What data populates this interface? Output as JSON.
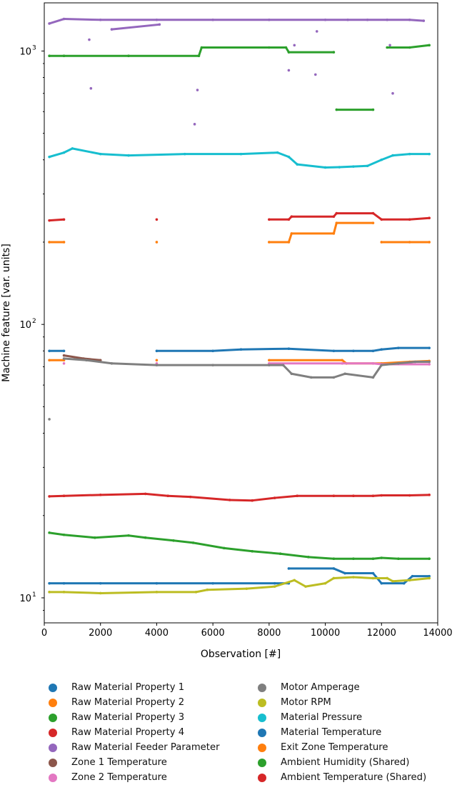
{
  "chart_data": {
    "type": "scatter",
    "title": "",
    "xlabel": "Observation [#]",
    "ylabel": "Machine feature [var. units]",
    "xlim": [
      0,
      14000
    ],
    "ylim": [
      8.1,
      1500
    ],
    "yscale": "log",
    "xticks": [
      0,
      2000,
      4000,
      6000,
      8000,
      10000,
      12000,
      14000
    ],
    "yticks": [
      {
        "value": 10,
        "label": "10"
      },
      {
        "value": 100,
        "label": "10"
      },
      {
        "value": 1000,
        "label": "10"
      }
    ],
    "ytick_exponents": [
      "1",
      "2",
      "3"
    ],
    "legend_position": "below",
    "series": [
      {
        "name": "Raw Material Property 1",
        "color": "#1f77b4",
        "points": [
          [
            180,
            11.3
          ],
          [
            700,
            11.3
          ],
          [
            2000,
            11.3
          ],
          [
            4000,
            11.3
          ],
          [
            6000,
            11.3
          ],
          [
            8200,
            11.3
          ],
          [
            8700,
            11.3
          ],
          [
            8700,
            12.8
          ],
          [
            10300,
            12.8
          ],
          [
            10700,
            12.3
          ],
          [
            11700,
            12.3
          ],
          [
            12000,
            11.3
          ],
          [
            12800,
            11.3
          ],
          [
            13100,
            12
          ],
          [
            13700,
            12
          ]
        ]
      },
      {
        "name": "Raw Material Property 2",
        "color": "#ff7f0e",
        "points": [
          [
            180,
            74
          ],
          [
            700,
            74
          ],
          [
            4000,
            74
          ],
          [
            8000,
            74
          ],
          [
            10600,
            74
          ],
          [
            10750,
            72
          ],
          [
            11700,
            72
          ],
          [
            12000,
            72
          ],
          [
            13000,
            73
          ],
          [
            13700,
            73.5
          ]
        ]
      },
      {
        "name": "Raw Material Property 3",
        "color": "#2ca02c",
        "points": [
          [
            180,
            17.3
          ],
          [
            700,
            17
          ],
          [
            1800,
            16.6
          ],
          [
            3000,
            16.9
          ],
          [
            3600,
            16.6
          ],
          [
            4600,
            16.2
          ],
          [
            5300,
            15.9
          ],
          [
            6400,
            15.2
          ],
          [
            7400,
            14.8
          ],
          [
            8400,
            14.5
          ],
          [
            9400,
            14.1
          ],
          [
            10300,
            13.9
          ],
          [
            11000,
            13.9
          ],
          [
            11700,
            13.9
          ],
          [
            12000,
            14
          ],
          [
            12600,
            13.9
          ],
          [
            13700,
            13.9
          ]
        ]
      },
      {
        "name": "Raw Material Property 4",
        "color": "#d62728",
        "points": [
          [
            180,
            23.5
          ],
          [
            700,
            23.6
          ],
          [
            2000,
            23.8
          ],
          [
            3600,
            24
          ],
          [
            4400,
            23.6
          ],
          [
            5200,
            23.4
          ],
          [
            6600,
            22.8
          ],
          [
            7400,
            22.7
          ],
          [
            8200,
            23.2
          ],
          [
            9000,
            23.6
          ],
          [
            10300,
            23.6
          ],
          [
            11000,
            23.6
          ],
          [
            11700,
            23.6
          ],
          [
            12000,
            23.7
          ],
          [
            13000,
            23.7
          ],
          [
            13700,
            23.8
          ]
        ]
      },
      {
        "name": "Raw Material Feeder Parameter",
        "color": "#9467bd",
        "points": [
          [
            180,
            1260
          ],
          [
            700,
            1310
          ],
          [
            2000,
            1300
          ],
          [
            4000,
            1300
          ],
          [
            6000,
            1300
          ],
          [
            8000,
            1300
          ],
          [
            10000,
            1300
          ],
          [
            10800,
            1300
          ],
          [
            11500,
            1300
          ],
          [
            12200,
            1300
          ],
          [
            13000,
            1300
          ],
          [
            13500,
            1290
          ],
          [
            1600,
            1100
          ],
          [
            1660,
            730
          ],
          [
            2400,
            1200
          ],
          [
            4100,
            1250
          ],
          [
            5350,
            540
          ],
          [
            5450,
            720
          ],
          [
            8700,
            850
          ],
          [
            8900,
            1050
          ],
          [
            9650,
            820
          ],
          [
            9700,
            1180
          ],
          [
            12400,
            700
          ],
          [
            12300,
            1050
          ]
        ]
      },
      {
        "name": "Zone 1 Temperature",
        "color": "#8c564b",
        "points": [
          [
            700,
            77
          ],
          [
            1400,
            75
          ],
          [
            2000,
            74
          ]
        ]
      },
      {
        "name": "Zone 2 Temperature",
        "color": "#e377c2",
        "points": [
          [
            700,
            72
          ],
          [
            4000,
            72
          ],
          [
            8000,
            72
          ],
          [
            10600,
            72
          ],
          [
            11700,
            72
          ],
          [
            12000,
            71.5
          ],
          [
            13700,
            71.5
          ]
        ]
      },
      {
        "name": "Motor Amperage",
        "color": "#7f7f7f",
        "points": [
          [
            180,
            45
          ],
          [
            700,
            75
          ],
          [
            1500,
            74
          ],
          [
            2400,
            72
          ],
          [
            4000,
            71
          ],
          [
            6000,
            71
          ],
          [
            8000,
            71
          ],
          [
            8500,
            71
          ],
          [
            8800,
            66
          ],
          [
            9500,
            64
          ],
          [
            10300,
            64
          ],
          [
            10700,
            66
          ],
          [
            11700,
            64
          ],
          [
            12000,
            71
          ],
          [
            12600,
            72
          ],
          [
            13200,
            73
          ],
          [
            13700,
            73
          ]
        ]
      },
      {
        "name": "Motor RPM",
        "color": "#bcbd22",
        "points": [
          [
            180,
            10.5
          ],
          [
            700,
            10.5
          ],
          [
            2000,
            10.4
          ],
          [
            4000,
            10.5
          ],
          [
            5400,
            10.5
          ],
          [
            5800,
            10.7
          ],
          [
            7200,
            10.8
          ],
          [
            8200,
            11
          ],
          [
            8900,
            11.6
          ],
          [
            9300,
            11
          ],
          [
            10000,
            11.3
          ],
          [
            10300,
            11.8
          ],
          [
            11000,
            11.9
          ],
          [
            11700,
            11.8
          ],
          [
            12200,
            11.8
          ],
          [
            12400,
            11.5
          ],
          [
            13000,
            11.6
          ],
          [
            13700,
            11.8
          ]
        ]
      },
      {
        "name": "Material Pressure",
        "color": "#17becf",
        "points": [
          [
            180,
            410
          ],
          [
            700,
            425
          ],
          [
            1000,
            440
          ],
          [
            2000,
            420
          ],
          [
            3000,
            415
          ],
          [
            5000,
            420
          ],
          [
            7000,
            420
          ],
          [
            8300,
            425
          ],
          [
            8700,
            410
          ],
          [
            9000,
            385
          ],
          [
            10000,
            375
          ],
          [
            10500,
            376
          ],
          [
            11000,
            378
          ],
          [
            11500,
            380
          ],
          [
            12000,
            400
          ],
          [
            12400,
            415
          ],
          [
            13000,
            420
          ],
          [
            13700,
            420
          ]
        ]
      },
      {
        "name": "Material Temperature",
        "color": "#1f77b4",
        "points": [
          [
            180,
            80
          ],
          [
            700,
            80
          ],
          [
            4000,
            80
          ],
          [
            6000,
            80
          ],
          [
            7000,
            81
          ],
          [
            8700,
            81.5
          ],
          [
            10300,
            80
          ],
          [
            11000,
            80
          ],
          [
            11700,
            80
          ],
          [
            12000,
            81
          ],
          [
            12600,
            82
          ],
          [
            13700,
            82
          ]
        ]
      },
      {
        "name": "Exit Zone Temperature",
        "color": "#ff7f0e",
        "points": [
          [
            180,
            200
          ],
          [
            700,
            200
          ],
          [
            4000,
            200
          ],
          [
            8000,
            200
          ],
          [
            8700,
            200
          ],
          [
            8800,
            215
          ],
          [
            10300,
            215
          ],
          [
            10400,
            235
          ],
          [
            11700,
            235
          ],
          [
            12000,
            200
          ],
          [
            13000,
            200
          ],
          [
            13700,
            200
          ]
        ]
      },
      {
        "name": "Ambient Humidity (Shared)",
        "color": "#2ca02c",
        "points": [
          [
            180,
            960
          ],
          [
            700,
            960
          ],
          [
            3000,
            960
          ],
          [
            5500,
            960
          ],
          [
            5600,
            1030
          ],
          [
            8000,
            1030
          ],
          [
            8600,
            1030
          ],
          [
            8700,
            990
          ],
          [
            10300,
            990
          ],
          [
            10400,
            610
          ],
          [
            11700,
            610
          ],
          [
            12200,
            1030
          ],
          [
            13000,
            1030
          ],
          [
            13700,
            1050
          ]
        ]
      },
      {
        "name": "Ambient Temperature (Shared)",
        "color": "#d62728",
        "points": [
          [
            180,
            240
          ],
          [
            700,
            242
          ],
          [
            4000,
            242
          ],
          [
            8000,
            242
          ],
          [
            8700,
            242
          ],
          [
            8800,
            248
          ],
          [
            10300,
            248
          ],
          [
            10400,
            255
          ],
          [
            11700,
            255
          ],
          [
            12000,
            242
          ],
          [
            13000,
            242
          ],
          [
            13700,
            245
          ]
        ]
      }
    ]
  }
}
